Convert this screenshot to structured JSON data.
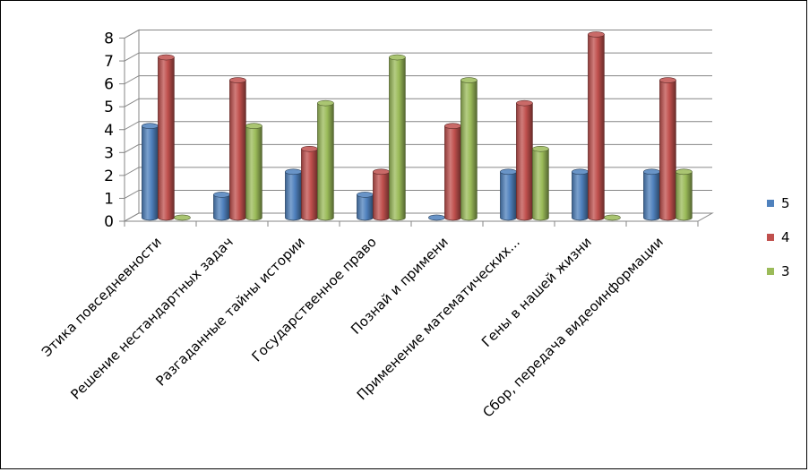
{
  "chart_data": {
    "type": "bar",
    "title": "",
    "xlabel": "",
    "ylabel": "",
    "categories": [
      "Этика повседневности",
      "Решение нестандартных задач",
      "Разгаданные тайны истории",
      "Государственное право",
      "Познай и примени",
      "Применение математических...",
      "Гены в нашей жизни",
      "Сбор, передача видеоинформации"
    ],
    "series": [
      {
        "name": "5",
        "color": "#4F81BD",
        "values": [
          4,
          1,
          2,
          1,
          0,
          2,
          2,
          2
        ]
      },
      {
        "name": "4",
        "color": "#C0504D",
        "values": [
          7,
          6,
          3,
          2,
          4,
          5,
          8,
          6
        ]
      },
      {
        "name": "3",
        "color": "#9BBB59",
        "values": [
          0,
          4,
          5,
          7,
          6,
          3,
          0,
          2
        ]
      }
    ],
    "ylim": [
      0,
      8
    ],
    "yticks": [
      "0",
      "1",
      "2",
      "3",
      "4",
      "5",
      "6",
      "7",
      "8"
    ],
    "grid": true,
    "legend_position": "right",
    "style": "3d-cylinder"
  }
}
